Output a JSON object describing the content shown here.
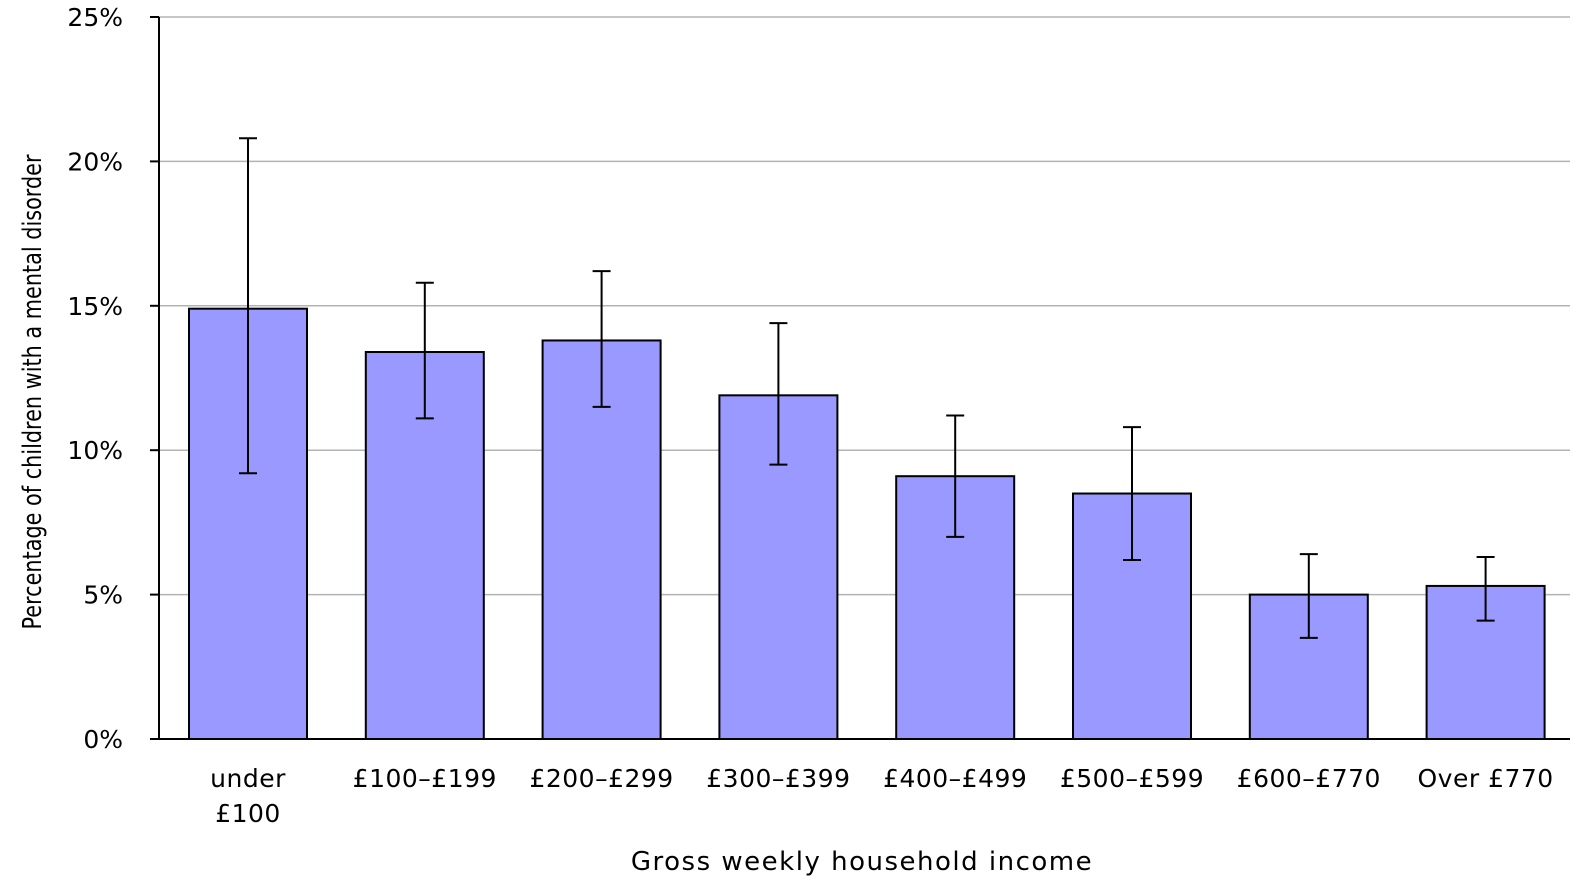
{
  "chart_data": {
    "type": "bar",
    "categories": [
      [
        "under",
        "£100"
      ],
      [
        "£100–£199"
      ],
      [
        "£200–£299"
      ],
      [
        "£300–£399"
      ],
      [
        "£400–£499"
      ],
      [
        "£500–£599"
      ],
      [
        "£600–£770"
      ],
      [
        "Over £770"
      ]
    ],
    "values": [
      14.9,
      13.4,
      13.8,
      11.9,
      9.1,
      8.5,
      5.0,
      5.3
    ],
    "error_low": [
      9.2,
      11.1,
      11.5,
      9.5,
      7.0,
      6.2,
      3.5,
      4.1
    ],
    "error_high": [
      20.8,
      15.8,
      16.2,
      14.4,
      11.2,
      10.8,
      6.4,
      6.3
    ],
    "ylim": [
      0,
      25
    ],
    "yticks": [
      0,
      5,
      10,
      15,
      20,
      25
    ],
    "ytick_labels": [
      "0%",
      "5%",
      "10%",
      "15%",
      "20%",
      "25%"
    ],
    "xlabel": "Gross weekly household income",
    "ylabel": "Percentage of children with a mental disorder",
    "grid": true,
    "colors": {
      "bar_fill": "#9999ff",
      "bar_stroke": "#000000",
      "gridline": "#b3b3b3",
      "axis": "#000000"
    }
  }
}
